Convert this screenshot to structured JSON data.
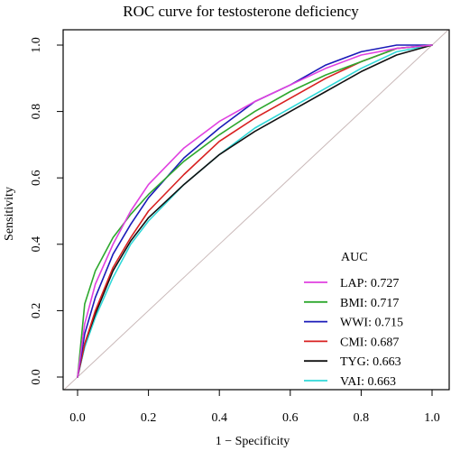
{
  "chart_data": {
    "type": "line",
    "title": "ROC curve for testosterone deficiency",
    "xlabel": "1 − Specificity",
    "ylabel": "Sensitivity",
    "xlim": [
      0,
      1
    ],
    "ylim": [
      0,
      1
    ],
    "x_ticks": [
      "0.0",
      "0.2",
      "0.4",
      "0.6",
      "0.8",
      "1.0"
    ],
    "y_ticks": [
      "0.0",
      "0.2",
      "0.4",
      "0.6",
      "0.8",
      "1.0"
    ],
    "grid": false,
    "reference_line": {
      "from": [
        0,
        0
      ],
      "to": [
        1,
        1
      ],
      "color": "#c9b8b8"
    },
    "legend": {
      "title": "AUC",
      "position": "bottom-right"
    },
    "series": [
      {
        "name": "LAP: 0.727",
        "color": "#e040e0",
        "x": [
          0,
          0.02,
          0.05,
          0.1,
          0.15,
          0.2,
          0.3,
          0.4,
          0.5,
          0.6,
          0.7,
          0.8,
          0.9,
          1.0
        ],
        "y": [
          0,
          0.16,
          0.28,
          0.4,
          0.5,
          0.58,
          0.69,
          0.77,
          0.83,
          0.88,
          0.93,
          0.97,
          0.99,
          1.0
        ]
      },
      {
        "name": "BMI: 0.717",
        "color": "#2ea82e",
        "x": [
          0,
          0.02,
          0.05,
          0.1,
          0.15,
          0.2,
          0.3,
          0.4,
          0.5,
          0.6,
          0.7,
          0.8,
          0.9,
          1.0
        ],
        "y": [
          0,
          0.22,
          0.32,
          0.42,
          0.49,
          0.55,
          0.65,
          0.73,
          0.8,
          0.86,
          0.91,
          0.95,
          0.99,
          1.0
        ]
      },
      {
        "name": "WWI: 0.715",
        "color": "#1a1ab8",
        "x": [
          0,
          0.02,
          0.05,
          0.1,
          0.15,
          0.2,
          0.3,
          0.4,
          0.5,
          0.6,
          0.7,
          0.8,
          0.9,
          1.0
        ],
        "y": [
          0,
          0.13,
          0.24,
          0.37,
          0.46,
          0.54,
          0.66,
          0.75,
          0.83,
          0.88,
          0.94,
          0.98,
          1.0,
          1.0
        ]
      },
      {
        "name": "CMI: 0.687",
        "color": "#d82020",
        "x": [
          0,
          0.02,
          0.05,
          0.1,
          0.15,
          0.2,
          0.3,
          0.4,
          0.5,
          0.6,
          0.7,
          0.8,
          0.9,
          1.0
        ],
        "y": [
          0,
          0.1,
          0.2,
          0.33,
          0.42,
          0.5,
          0.61,
          0.71,
          0.78,
          0.84,
          0.9,
          0.95,
          0.99,
          1.0
        ]
      },
      {
        "name": "TYG: 0.663",
        "color": "#111111",
        "x": [
          0,
          0.02,
          0.05,
          0.1,
          0.15,
          0.2,
          0.3,
          0.4,
          0.5,
          0.6,
          0.7,
          0.8,
          0.9,
          1.0
        ],
        "y": [
          0,
          0.1,
          0.19,
          0.32,
          0.41,
          0.48,
          0.58,
          0.67,
          0.74,
          0.8,
          0.86,
          0.92,
          0.97,
          1.0
        ]
      },
      {
        "name": "VAI: 0.663",
        "color": "#30d8d8",
        "x": [
          0,
          0.02,
          0.05,
          0.1,
          0.15,
          0.2,
          0.3,
          0.4,
          0.5,
          0.6,
          0.7,
          0.8,
          0.9,
          1.0
        ],
        "y": [
          0,
          0.09,
          0.18,
          0.3,
          0.4,
          0.47,
          0.58,
          0.67,
          0.75,
          0.81,
          0.87,
          0.93,
          0.98,
          1.0
        ]
      }
    ]
  }
}
